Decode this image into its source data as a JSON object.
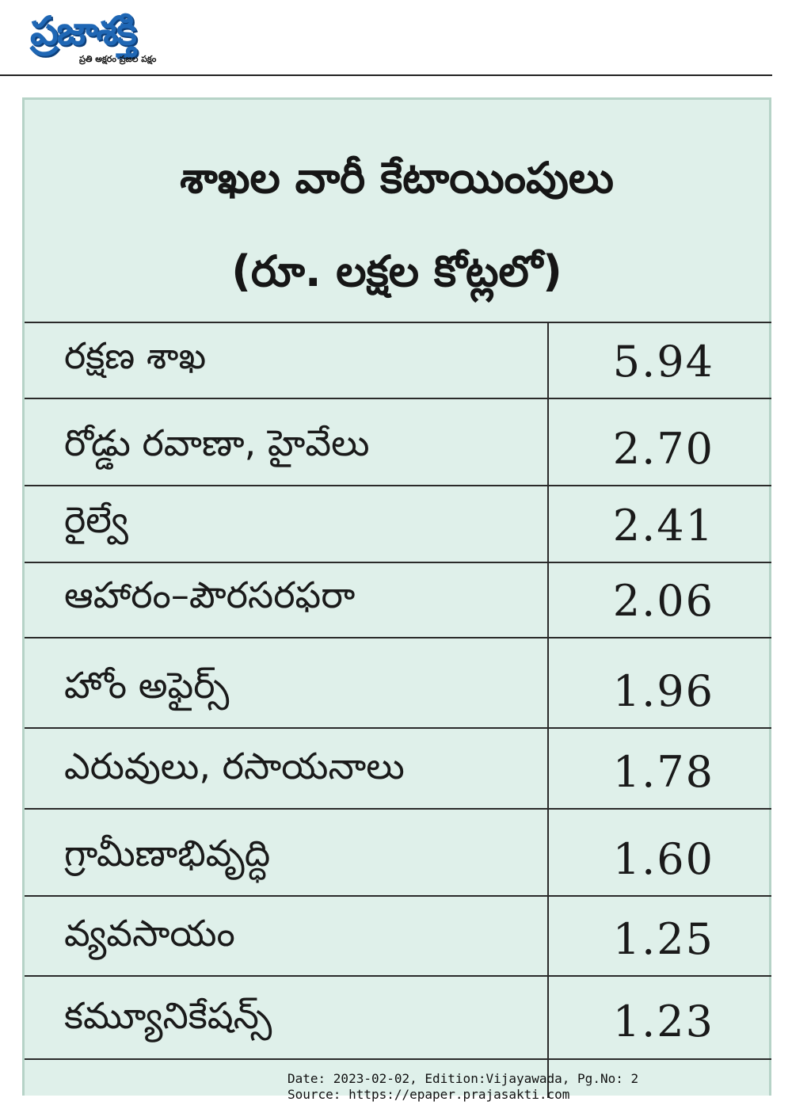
{
  "masthead": {
    "logo": "ప్రజాశక్తి",
    "tagline": "ప్రతి అక్షరం ప్రజల పక్షం"
  },
  "table": {
    "title_line1": "శాఖల వారీ కేటాయింపులు",
    "title_line2": "(రూ. లక్షల కోట్లలో)",
    "rows": [
      {
        "name": "రక్షణ శాఖ",
        "value": "5.94"
      },
      {
        "name": "రోడ్డు రవాణా, హైవేలు",
        "value": "2.70"
      },
      {
        "name": "రైల్వే",
        "value": "2.41"
      },
      {
        "name": "ఆహారం–పౌరసరఫరా",
        "value": "2.06"
      },
      {
        "name": "హోం అఫైర్స్",
        "value": "1.96"
      },
      {
        "name": "ఎరువులు, రసాయనాలు",
        "value": "1.78"
      },
      {
        "name": "గ్రామీణాభివృద్ధి",
        "value": "1.60"
      },
      {
        "name": "వ్యవసాయం",
        "value": "1.25"
      },
      {
        "name": "కమ్యూనికేషన్స్",
        "value": "1.23"
      }
    ]
  },
  "footer": {
    "date_line": "Date: 2023-02-02, Edition:Vijayawada, Pg.No: 2",
    "source_line": "Source: https://epaper.prajasakti.com"
  }
}
